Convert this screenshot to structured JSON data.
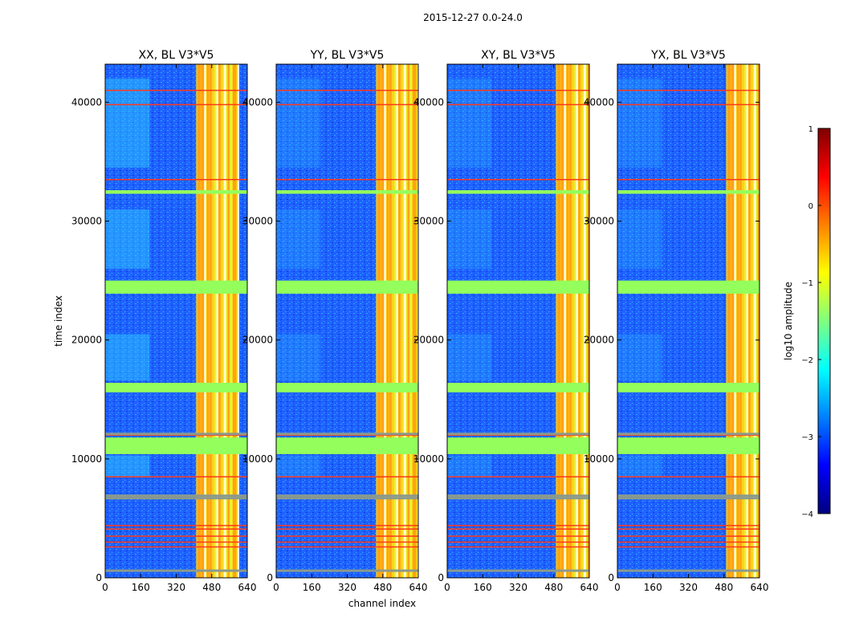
{
  "chart_data": {
    "type": "heatmap",
    "suptitle": "2015-12-27 0.0-24.0",
    "xlabel": "channel index",
    "ylabel": "time index",
    "x_ticks": [
      "0",
      "160",
      "320",
      "480",
      "640"
    ],
    "y_ticks": [
      "0",
      "10000",
      "20000",
      "30000",
      "40000"
    ],
    "xlim": [
      0,
      640
    ],
    "ylim": [
      0,
      43200
    ],
    "panels": [
      {
        "title": "XX, BL V3*V5",
        "pol": "XX",
        "line_offset": 0
      },
      {
        "title": "YY, BL V3*V5",
        "pol": "YY",
        "line_offset": 40
      },
      {
        "title": "XY, BL V3*V5",
        "pol": "XY",
        "line_offset": 80
      },
      {
        "title": "YX, BL V3*V5",
        "pol": "YX",
        "line_offset": 80
      }
    ],
    "flagged_time_bands": [
      [
        10400,
        11800
      ],
      [
        15600,
        16400
      ],
      [
        23900,
        25000
      ],
      [
        32300,
        32600
      ]
    ],
    "red_time_lines": [
      2600,
      3000,
      3500,
      4100,
      4400,
      8500,
      12000,
      33500,
      39800,
      41000
    ],
    "grey_time_lines": [
      600,
      6700,
      6900,
      12100
    ],
    "bright_channel_band": [
      410,
      600
    ],
    "colorbar": {
      "label": "log10 amplitude",
      "range": [
        -4,
        1
      ],
      "ticks": [
        "1",
        "0",
        "−1",
        "−2",
        "−3",
        "−4"
      ],
      "stops": [
        {
          "v": 0.0,
          "c": "#00007f"
        },
        {
          "v": 0.125,
          "c": "#0000ff"
        },
        {
          "v": 0.375,
          "c": "#00ffff"
        },
        {
          "v": 0.5,
          "c": "#7fff7f"
        },
        {
          "v": 0.625,
          "c": "#ffff00"
        },
        {
          "v": 0.875,
          "c": "#ff0000"
        },
        {
          "v": 1.0,
          "c": "#7f0000"
        }
      ]
    },
    "colors": {
      "background_blue": "#1a5cff",
      "flag_green": "#94ff5c",
      "line_red": "#ff3a1a",
      "line_grey": "#8c9a8c"
    }
  }
}
